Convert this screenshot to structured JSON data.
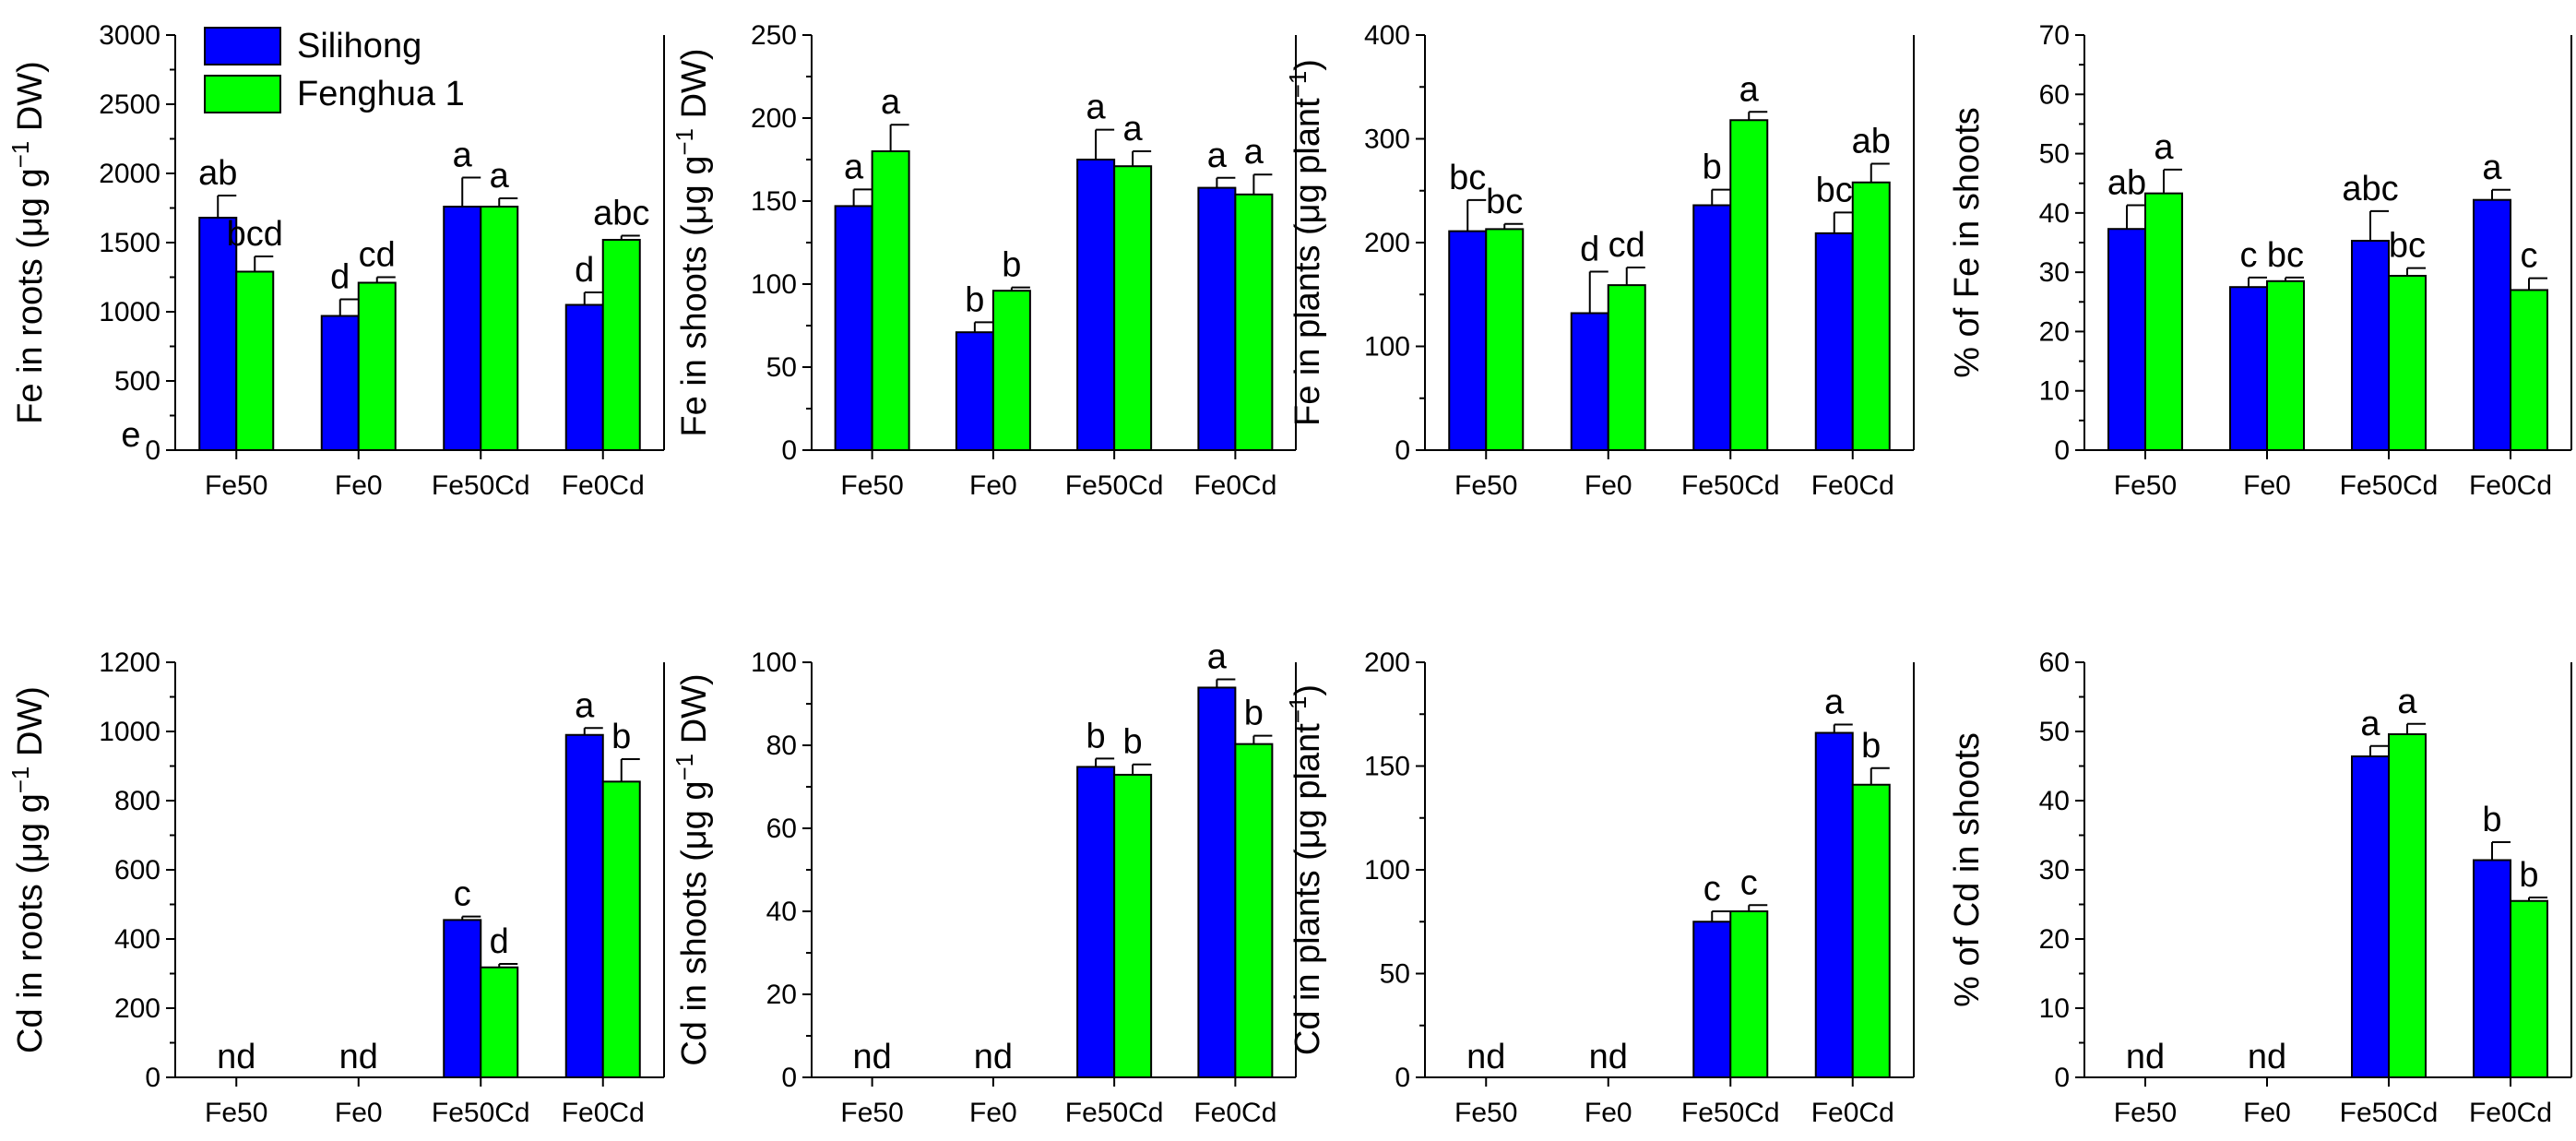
{
  "categories": [
    "Fe50",
    "Fe0",
    "Fe50Cd",
    "Fe0Cd"
  ],
  "legend": {
    "items": [
      {
        "name": "Silihong",
        "color": "#0000ff"
      },
      {
        "name": "Fenghua 1",
        "color": "#00ff00"
      }
    ],
    "placement": "top-left of first panel"
  },
  "colors": {
    "series_1": "#0000ff",
    "series_2": "#00ff00",
    "axis": "#000000"
  },
  "stray_label": "e",
  "chart_data": [
    {
      "type": "bar",
      "ylabel_main": "Fe in roots (μg g",
      "ylabel_sup": "−1",
      "ylabel_tail": " DW)",
      "categories": [
        "Fe50",
        "Fe0",
        "Fe50Cd",
        "Fe0Cd"
      ],
      "ylim": [
        0,
        3000
      ],
      "yticks": [
        "0",
        "500",
        "1000",
        "1500",
        "2000",
        "2500",
        "3000"
      ],
      "series": [
        {
          "name": "Silihong",
          "values": [
            1680,
            970,
            1760,
            1050
          ],
          "errors": [
            160,
            120,
            210,
            90
          ],
          "letters": [
            "ab",
            "d",
            "a",
            "d"
          ]
        },
        {
          "name": "Fenghua 1",
          "values": [
            1290,
            1210,
            1760,
            1520
          ],
          "errors": [
            110,
            40,
            60,
            30
          ],
          "letters": [
            "bcd",
            "cd",
            "a",
            "abc"
          ]
        }
      ]
    },
    {
      "type": "bar",
      "ylabel_main": "Fe in shoots (μg g",
      "ylabel_sup": "−1",
      "ylabel_tail": " DW)",
      "categories": [
        "Fe50",
        "Fe0",
        "Fe50Cd",
        "Fe0Cd"
      ],
      "ylim": [
        0,
        250
      ],
      "yticks": [
        "0",
        "50",
        "100",
        "150",
        "200",
        "250"
      ],
      "series": [
        {
          "name": "Silihong",
          "values": [
            147,
            71,
            175,
            158
          ],
          "errors": [
            10,
            6,
            18,
            6
          ],
          "letters": [
            "a",
            "b",
            "a",
            "a"
          ]
        },
        {
          "name": "Fenghua 1",
          "values": [
            180,
            96,
            171,
            154
          ],
          "errors": [
            16,
            2,
            9,
            12
          ],
          "letters": [
            "a",
            "b",
            "a",
            "a"
          ]
        }
      ]
    },
    {
      "type": "bar",
      "ylabel_main": "Fe in plants (μg plant",
      "ylabel_sup": "−1",
      "ylabel_tail": ")",
      "categories": [
        "Fe50",
        "Fe0",
        "Fe50Cd",
        "Fe0Cd"
      ],
      "ylim": [
        0,
        400
      ],
      "yticks": [
        "0",
        "100",
        "200",
        "300",
        "400"
      ],
      "series": [
        {
          "name": "Silihong",
          "values": [
            211,
            132,
            236,
            209
          ],
          "errors": [
            30,
            40,
            15,
            20
          ],
          "letters": [
            "bc",
            "d",
            "b",
            "bc"
          ]
        },
        {
          "name": "Fenghua 1",
          "values": [
            213,
            159,
            318,
            258
          ],
          "errors": [
            5,
            17,
            8,
            18
          ],
          "letters": [
            "bc",
            "cd",
            "a",
            "ab"
          ]
        }
      ]
    },
    {
      "type": "bar",
      "ylabel_main": "% of Fe in shoots",
      "ylabel_sup": "",
      "ylabel_tail": "",
      "categories": [
        "Fe50",
        "Fe0",
        "Fe50Cd",
        "Fe0Cd"
      ],
      "ylim": [
        0,
        70
      ],
      "yticks": [
        "0",
        "10",
        "20",
        "30",
        "40",
        "50",
        "60",
        "70"
      ],
      "series": [
        {
          "name": "Silihong",
          "values": [
            37.3,
            27.5,
            35.3,
            42.2
          ],
          "errors": [
            4.0,
            1.6,
            5.0,
            1.7
          ],
          "letters": [
            "ab",
            "c",
            "abc",
            "a"
          ]
        },
        {
          "name": "Fenghua 1",
          "values": [
            43.3,
            28.5,
            29.4,
            27.0
          ],
          "errors": [
            4.0,
            0.6,
            1.3,
            2.0
          ],
          "letters": [
            "a",
            "bc",
            "bc",
            "c"
          ]
        }
      ]
    },
    {
      "type": "bar",
      "ylabel_main": "Cd in roots (μg g",
      "ylabel_sup": "−1",
      "ylabel_tail": " DW)",
      "categories": [
        "Fe50",
        "Fe0",
        "Fe50Cd",
        "Fe0Cd"
      ],
      "ylim": [
        0,
        1200
      ],
      "yticks": [
        "0",
        "200",
        "400",
        "600",
        "800",
        "1000",
        "1200"
      ],
      "nd_label": "nd",
      "nd_categories": [
        0,
        1
      ],
      "series": [
        {
          "name": "Silihong",
          "values": [
            null,
            null,
            455,
            990
          ],
          "errors": [
            0,
            0,
            10,
            20
          ],
          "letters": [
            "",
            "",
            "c",
            "a"
          ]
        },
        {
          "name": "Fenghua 1",
          "values": [
            null,
            null,
            318,
            855
          ],
          "errors": [
            0,
            0,
            10,
            65
          ],
          "letters": [
            "",
            "",
            "d",
            "b"
          ]
        }
      ]
    },
    {
      "type": "bar",
      "ylabel_main": "Cd in shoots (μg g",
      "ylabel_sup": "−1",
      "ylabel_tail": " DW)",
      "categories": [
        "Fe50",
        "Fe0",
        "Fe50Cd",
        "Fe0Cd"
      ],
      "ylim": [
        0,
        100
      ],
      "yticks": [
        "0",
        "20",
        "40",
        "60",
        "80",
        "100"
      ],
      "nd_label": "nd",
      "nd_categories": [
        0,
        1
      ],
      "series": [
        {
          "name": "Silihong",
          "values": [
            null,
            null,
            74.8,
            93.9
          ],
          "errors": [
            0,
            0,
            2.0,
            2.0
          ],
          "letters": [
            "",
            "",
            "b",
            "a"
          ]
        },
        {
          "name": "Fenghua 1",
          "values": [
            null,
            null,
            72.9,
            80.3
          ],
          "errors": [
            0,
            0,
            2.5,
            2.0
          ],
          "letters": [
            "",
            "",
            "b",
            "b"
          ]
        }
      ]
    },
    {
      "type": "bar",
      "ylabel_main": "Cd in plants (μg plant",
      "ylabel_sup": "−1",
      "ylabel_tail": ")",
      "categories": [
        "Fe50",
        "Fe0",
        "Fe50Cd",
        "Fe0Cd"
      ],
      "ylim": [
        0,
        200
      ],
      "yticks": [
        "0",
        "50",
        "100",
        "150",
        "200"
      ],
      "nd_label": "nd",
      "nd_categories": [
        0,
        1
      ],
      "series": [
        {
          "name": "Silihong",
          "values": [
            null,
            null,
            75,
            166
          ],
          "errors": [
            0,
            0,
            5,
            4
          ],
          "letters": [
            "",
            "",
            "c",
            "a"
          ]
        },
        {
          "name": "Fenghua 1",
          "values": [
            null,
            null,
            80,
            141
          ],
          "errors": [
            0,
            0,
            3,
            8
          ],
          "letters": [
            "",
            "",
            "c",
            "b"
          ]
        }
      ]
    },
    {
      "type": "bar",
      "ylabel_main": "% of Cd in shoots",
      "ylabel_sup": "",
      "ylabel_tail": "",
      "categories": [
        "Fe50",
        "Fe0",
        "Fe50Cd",
        "Fe0Cd"
      ],
      "ylim": [
        0,
        60
      ],
      "yticks": [
        "0",
        "10",
        "20",
        "30",
        "40",
        "50",
        "60"
      ],
      "nd_label": "nd",
      "nd_categories": [
        0,
        1
      ],
      "series": [
        {
          "name": "Silihong",
          "values": [
            null,
            null,
            46.4,
            31.4
          ],
          "errors": [
            0,
            0,
            1.5,
            2.6
          ],
          "letters": [
            "",
            "",
            "a",
            "b"
          ]
        },
        {
          "name": "Fenghua 1",
          "values": [
            null,
            null,
            49.6,
            25.5
          ],
          "errors": [
            0,
            0,
            1.5,
            0.5
          ],
          "letters": [
            "",
            "",
            "a",
            "b"
          ]
        }
      ]
    }
  ]
}
